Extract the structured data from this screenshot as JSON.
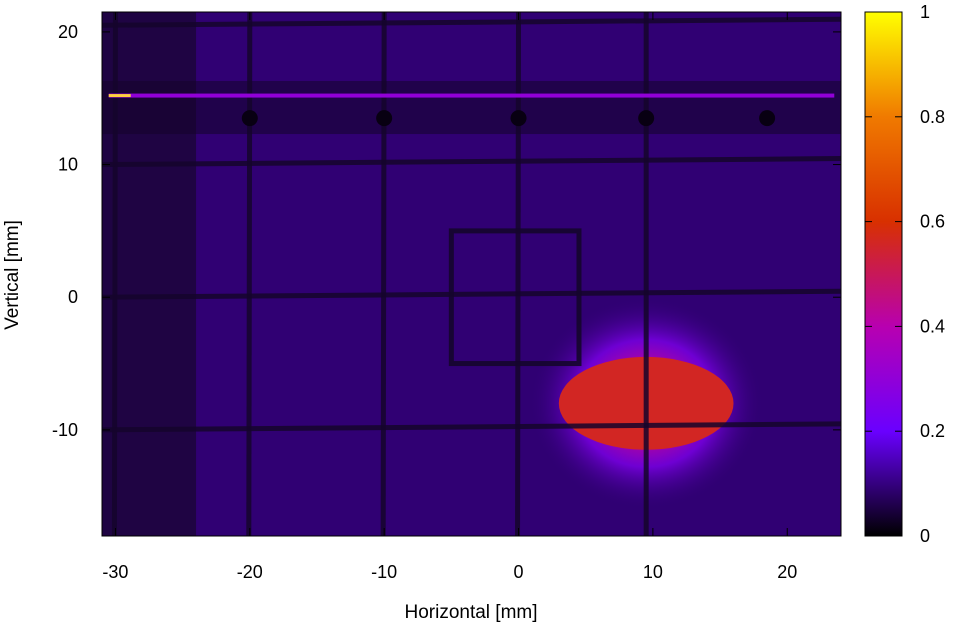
{
  "chart_data": {
    "type": "heatmap",
    "title": "",
    "xlabel": "Horizontal [mm]",
    "ylabel": "Vertical [mm]",
    "xlim": [
      -31,
      24
    ],
    "ylim": [
      -18,
      21.5
    ],
    "xticks": [
      -30,
      -20,
      -10,
      0,
      10,
      20
    ],
    "yticks": [
      -10,
      0,
      10,
      20
    ],
    "colorbar": {
      "range": [
        0,
        1
      ],
      "ticks": [
        0,
        0.2,
        0.4,
        0.6,
        0.8,
        1
      ],
      "colormap": "gnuplot-pm3d-rgbformulae-7-5-15",
      "stops": [
        {
          "v": 0.0,
          "color": "#000000"
        },
        {
          "v": 0.2,
          "color": "#6a00ff"
        },
        {
          "v": 0.4,
          "color": "#b800b0"
        },
        {
          "v": 0.6,
          "color": "#d83000"
        },
        {
          "v": 0.8,
          "color": "#f07a00"
        },
        {
          "v": 1.0,
          "color": "#ffff00"
        }
      ]
    },
    "background_level": 0.09,
    "beam_spot": {
      "center": [
        9.5,
        -8
      ],
      "peak": 0.56,
      "sigma_x": 6.0,
      "sigma_y": 4.0,
      "core_halfwidth": [
        6.5,
        3.5
      ]
    },
    "saturated_stripe": {
      "y": 15.2,
      "value": 0.3
    },
    "grid_wires_vertical_x": [
      -30,
      -20,
      -10,
      0,
      9.5
    ],
    "grid_wires_horizontal_y": [
      20.5,
      10,
      0,
      -10
    ],
    "square_mark": {
      "x": [
        -5,
        4.5
      ],
      "y": [
        -5,
        5
      ]
    },
    "dots_y": 13.5,
    "dots_x": [
      -20,
      -10,
      0,
      9.5,
      18.5
    ]
  }
}
